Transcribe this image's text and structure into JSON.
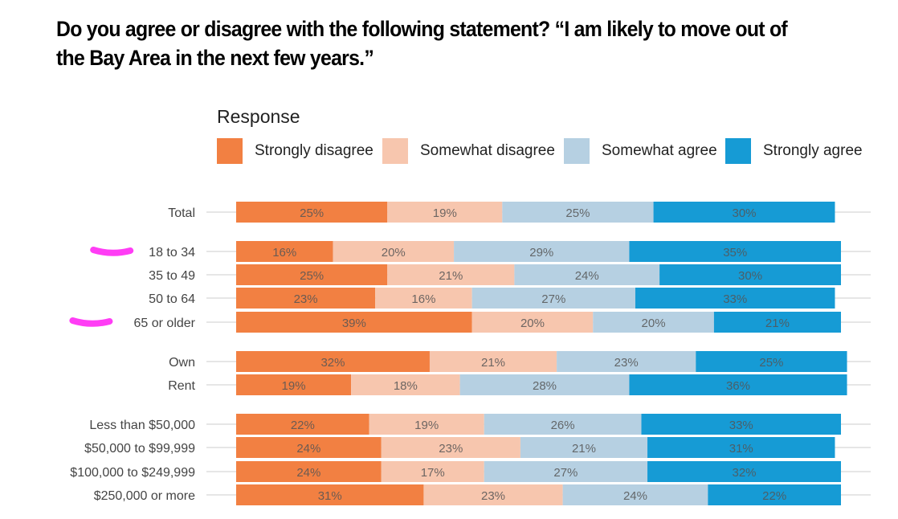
{
  "title": "Do you agree or disagree with the following statement? “I am likely to move out of the Bay Area in the next few years.”",
  "legend": {
    "title": "Response",
    "items": [
      {
        "label": "Strongly disagree",
        "color": "#f28042"
      },
      {
        "label": "Somewhat disagree",
        "color": "#f7c6ae"
      },
      {
        "label": "Somewhat agree",
        "color": "#b6d0e2"
      },
      {
        "label": "Strongly agree",
        "color": "#169bd5"
      }
    ]
  },
  "chart_data": {
    "type": "bar",
    "orientation": "horizontal",
    "stacked": true,
    "title": "Do you agree or disagree with the following statement? “I am likely to move out of the Bay Area in the next few years.”",
    "legend_title": "Response",
    "legend_position": "top",
    "grid": true,
    "xlim": [
      0,
      100
    ],
    "categories": [
      "Total",
      "18 to 34",
      "35 to 49",
      "50 to 64",
      "65 or older",
      "Own",
      "Rent",
      "Less than $50,000",
      "$50,000 to $99,999",
      "$100,000 to $249,999",
      "$250,000 or more"
    ],
    "groups": [
      [
        0
      ],
      [
        1,
        2,
        3,
        4
      ],
      [
        5,
        6
      ],
      [
        7,
        8,
        9,
        10
      ]
    ],
    "highlighted_categories": [
      "18 to 34",
      "65 or older"
    ],
    "highlight_color": "#ff3df5",
    "series": [
      {
        "name": "Strongly disagree",
        "values": [
          25,
          16,
          25,
          23,
          39,
          32,
          19,
          22,
          24,
          24,
          31
        ]
      },
      {
        "name": "Somewhat disagree",
        "values": [
          19,
          20,
          21,
          16,
          20,
          21,
          18,
          19,
          23,
          17,
          23
        ]
      },
      {
        "name": "Somewhat agree",
        "values": [
          25,
          29,
          24,
          27,
          20,
          23,
          28,
          26,
          21,
          27,
          24
        ]
      },
      {
        "name": "Strongly agree",
        "values": [
          30,
          35,
          30,
          33,
          21,
          25,
          36,
          33,
          31,
          32,
          22
        ]
      }
    ]
  }
}
